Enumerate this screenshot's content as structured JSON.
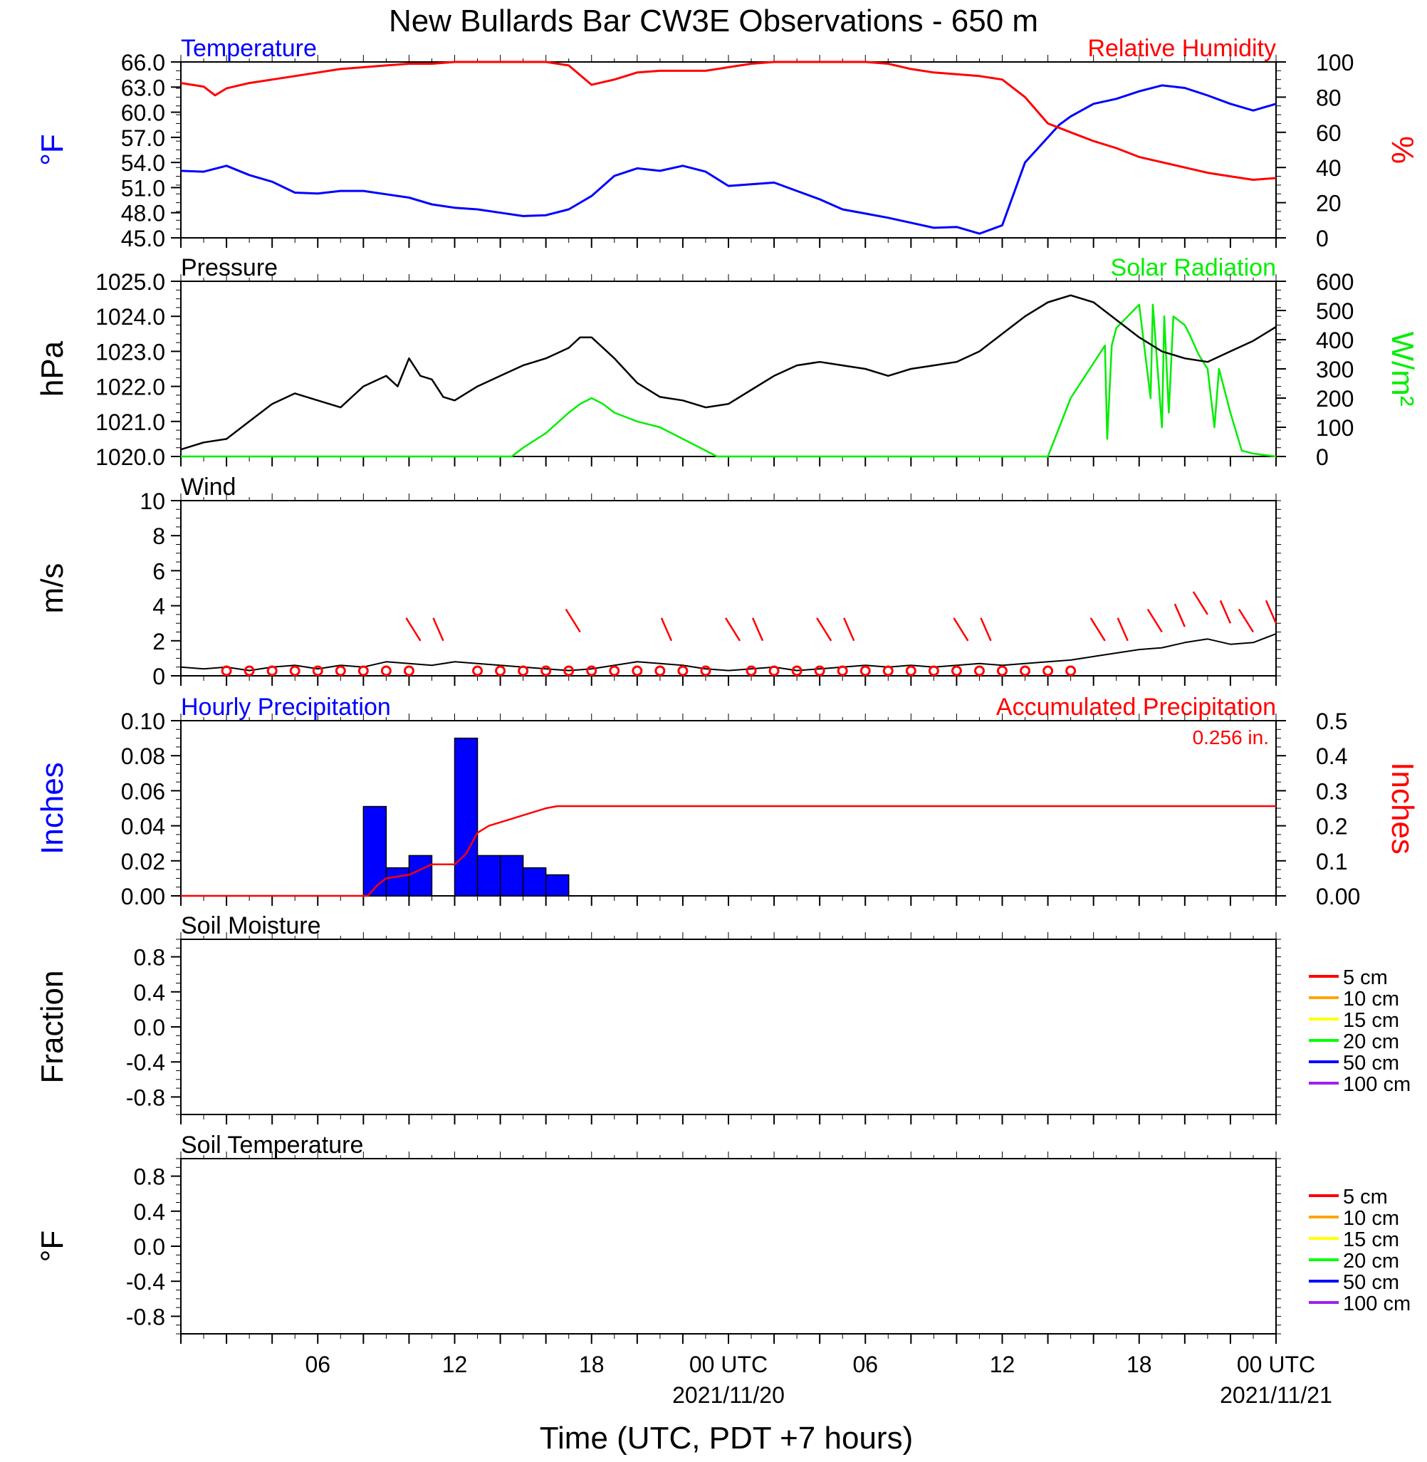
{
  "figure": {
    "title": "New Bullards Bar CW3E Observations - 650 m",
    "xlabel": "Time (UTC, PDT +7 hours)",
    "x_ticks": [
      "06",
      "12",
      "18",
      "00 UTC",
      "06",
      "12",
      "18",
      "00 UTC"
    ],
    "x_dates": [
      "2021/11/20",
      "2021/11/21"
    ]
  },
  "colors": {
    "temperature": "#0000ff",
    "humidity": "#ff0000",
    "pressure": "#000000",
    "solar": "#00ee00",
    "wind": "#000000",
    "barb": "#ff0000",
    "hourly_precip": "#0000ff",
    "accum_precip": "#ff0000"
  },
  "panels": {
    "temp_rh": {
      "left_title": "Temperature",
      "right_title": "Relative Humidity",
      "ylabel_left": "°F",
      "ylabel_right": "%",
      "yticks_left": [
        "45.0",
        "48.0",
        "51.0",
        "54.0",
        "57.0",
        "60.0",
        "63.0",
        "66.0"
      ],
      "yticks_right": [
        "0",
        "20",
        "40",
        "60",
        "80",
        "100"
      ]
    },
    "pressure_solar": {
      "left_title": "Pressure",
      "right_title": "Solar Radiation",
      "ylabel_left": "hPa",
      "ylabel_right": "W/m²",
      "yticks_left": [
        "1020.0",
        "1021.0",
        "1022.0",
        "1023.0",
        "1024.0",
        "1025.0"
      ],
      "yticks_right": [
        "0",
        "100",
        "200",
        "300",
        "400",
        "500",
        "600"
      ]
    },
    "wind": {
      "left_title": "Wind",
      "ylabel_left": "m/s",
      "yticks_left": [
        "0",
        "2",
        "4",
        "6",
        "8",
        "10"
      ]
    },
    "precip": {
      "left_title": "Hourly Precipitation",
      "right_title": "Accumulated Precipitation",
      "total_label": "0.256 in.",
      "ylabel_left": "Inches",
      "ylabel_right": "Inches",
      "yticks_left": [
        "0.00",
        "0.02",
        "0.04",
        "0.06",
        "0.08",
        "0.10"
      ],
      "yticks_right": [
        "0.00",
        "0.1",
        "0.2",
        "0.3",
        "0.4",
        "0.5"
      ]
    },
    "soil_moisture": {
      "left_title": "Soil Moisture",
      "ylabel_left": "Fraction",
      "yticks_left": [
        "-0.8",
        "-0.4",
        "0.0",
        "0.4",
        "0.8"
      ],
      "legend": [
        "5 cm",
        "10 cm",
        "15 cm",
        "20 cm",
        "50 cm",
        "100 cm"
      ]
    },
    "soil_temp": {
      "left_title": "Soil Temperature",
      "ylabel_left": "°F",
      "yticks_left": [
        "-0.8",
        "-0.4",
        "0.0",
        "0.4",
        "0.8"
      ],
      "legend": [
        "5 cm",
        "10 cm",
        "15 cm",
        "20 cm",
        "50 cm",
        "100 cm"
      ]
    }
  },
  "legend_colors": [
    "#ff0000",
    "#ffa500",
    "#ffff00",
    "#00ff00",
    "#0000ff",
    "#a020f0"
  ],
  "chart_data": [
    {
      "type": "line",
      "title": "Temperature",
      "ylabel": "°F",
      "ylim": [
        45,
        66
      ],
      "x_hours": [
        0,
        1,
        2,
        3,
        4,
        5,
        6,
        7,
        8,
        9,
        10,
        11,
        12,
        13,
        14,
        15,
        16,
        17,
        18,
        19,
        20,
        21,
        22,
        23,
        24,
        25,
        26,
        27,
        28,
        29,
        30,
        31,
        32,
        33,
        34,
        35,
        36,
        37,
        38,
        38.5,
        39,
        40,
        41,
        42,
        43,
        44,
        45,
        46,
        47,
        48
      ],
      "values": [
        53,
        52.9,
        53.6,
        52.5,
        51.7,
        50.4,
        50.3,
        50.6,
        50.6,
        50.2,
        49.8,
        49,
        48.6,
        48.4,
        48,
        47.6,
        47.7,
        48.4,
        50,
        52.4,
        53.3,
        53,
        53.6,
        52.9,
        51.2,
        51.4,
        51.6,
        50.6,
        49.6,
        48.4,
        47.9,
        47.4,
        46.8,
        46.2,
        46.3,
        45.5,
        46.5,
        54,
        57,
        58.5,
        59.5,
        61,
        61.6,
        62.5,
        63.2,
        62.9,
        62,
        61,
        60.2,
        61
      ]
    },
    {
      "type": "line",
      "title": "Relative Humidity",
      "ylabel": "%",
      "ylim": [
        0,
        100
      ],
      "x_hours": [
        0,
        1,
        1.5,
        2,
        3,
        4,
        5,
        6,
        7,
        8,
        9,
        10,
        11,
        12,
        13,
        14,
        15,
        16,
        17,
        18,
        19,
        20,
        21,
        22,
        23,
        24,
        25,
        26,
        27,
        28,
        29,
        30,
        31,
        32,
        33,
        34,
        35,
        36,
        37,
        38,
        39,
        40,
        41,
        42,
        43,
        44,
        45,
        46,
        47,
        48
      ],
      "values": [
        88,
        86,
        81,
        85,
        88,
        90,
        92,
        94,
        96,
        97,
        98,
        99,
        99,
        100,
        100,
        100,
        100,
        100,
        98,
        87,
        90,
        94,
        95,
        95,
        95,
        97,
        99,
        100,
        100,
        100,
        100,
        100,
        99,
        96,
        94,
        93,
        92,
        90,
        80,
        65,
        60,
        55,
        51,
        46,
        43,
        40,
        37,
        35,
        33,
        34
      ]
    },
    {
      "type": "line",
      "title": "Pressure",
      "ylabel": "hPa",
      "ylim": [
        1020,
        1025
      ],
      "x_hours": [
        0,
        1,
        2,
        3,
        4,
        5,
        6,
        7,
        8,
        9,
        9.5,
        10,
        10.5,
        11,
        11.5,
        12,
        13,
        14,
        15,
        16,
        17,
        17.5,
        18,
        19,
        20,
        21,
        22,
        23,
        24,
        25,
        26,
        27,
        28,
        29,
        30,
        31,
        32,
        33,
        34,
        35,
        36,
        37,
        38,
        39,
        40,
        41,
        42,
        43,
        44,
        45,
        46,
        47,
        48
      ],
      "values": [
        1020.2,
        1020.4,
        1020.5,
        1021,
        1021.5,
        1021.8,
        1021.6,
        1021.4,
        1022,
        1022.3,
        1022,
        1022.8,
        1022.3,
        1022.2,
        1021.7,
        1021.6,
        1022,
        1022.3,
        1022.6,
        1022.8,
        1023.1,
        1023.4,
        1023.4,
        1022.8,
        1022.1,
        1021.7,
        1021.6,
        1021.4,
        1021.5,
        1021.9,
        1022.3,
        1022.6,
        1022.7,
        1022.6,
        1022.5,
        1022.3,
        1022.5,
        1022.6,
        1022.7,
        1023,
        1023.5,
        1024,
        1024.4,
        1024.6,
        1024.4,
        1023.9,
        1023.4,
        1023,
        1022.8,
        1022.7,
        1023,
        1023.3,
        1023.7
      ]
    },
    {
      "type": "line",
      "title": "Solar Radiation",
      "ylabel": "W/m²",
      "ylim": [
        0,
        600
      ],
      "x_hours": [
        0,
        14.5,
        15,
        16,
        17,
        17.5,
        18,
        18.5,
        19,
        20,
        20.5,
        21,
        22,
        23,
        23.5,
        24,
        38,
        38.5,
        39,
        40,
        40.5,
        40.6,
        40.8,
        41,
        42,
        42.5,
        42.6,
        43,
        43.1,
        43.3,
        43.5,
        44,
        44.2,
        44.6,
        45,
        45.3,
        45.5,
        46,
        46.5,
        47,
        48
      ],
      "values": [
        0,
        0,
        30,
        80,
        150,
        180,
        200,
        180,
        150,
        120,
        110,
        100,
        60,
        20,
        0,
        0,
        0,
        100,
        200,
        320,
        380,
        60,
        380,
        440,
        520,
        200,
        520,
        100,
        480,
        150,
        480,
        450,
        420,
        350,
        300,
        100,
        300,
        150,
        20,
        10,
        0
      ]
    },
    {
      "type": "line",
      "title": "Wind",
      "ylabel": "m/s",
      "ylim": [
        0,
        10
      ],
      "x_hours": [
        0,
        1,
        2,
        3,
        4,
        5,
        6,
        7,
        8,
        9,
        10,
        11,
        12,
        13,
        14,
        15,
        16,
        17,
        18,
        19,
        20,
        21,
        22,
        23,
        24,
        25,
        26,
        27,
        28,
        29,
        30,
        31,
        32,
        33,
        34,
        35,
        36,
        37,
        38,
        39,
        40,
        41,
        42,
        43,
        44,
        45,
        46,
        47,
        48
      ],
      "values": [
        0.5,
        0.4,
        0.5,
        0.3,
        0.5,
        0.6,
        0.4,
        0.6,
        0.5,
        0.8,
        0.7,
        0.6,
        0.8,
        0.7,
        0.6,
        0.5,
        0.4,
        0.3,
        0.4,
        0.6,
        0.8,
        0.7,
        0.6,
        0.4,
        0.3,
        0.4,
        0.5,
        0.3,
        0.4,
        0.5,
        0.6,
        0.5,
        0.6,
        0.5,
        0.6,
        0.7,
        0.6,
        0.7,
        0.8,
        0.9,
        1.1,
        1.3,
        1.5,
        1.6,
        1.9,
        2.1,
        1.8,
        1.9,
        2.4
      ]
    },
    {
      "type": "bar",
      "title": "Hourly Precipitation",
      "ylabel": "Inches",
      "ylim": [
        0,
        0.1
      ],
      "hour_start": [
        8,
        9,
        10,
        12,
        13,
        14,
        15,
        16
      ],
      "values": [
        0.051,
        0.016,
        0.023,
        0.09,
        0.023,
        0.023,
        0.016,
        0.012
      ]
    },
    {
      "type": "line",
      "title": "Accumulated Precipitation",
      "ylabel": "Inches",
      "ylim": [
        0,
        0.5
      ],
      "x_hours": [
        0,
        8.2,
        8.6,
        9,
        9.5,
        10,
        10.5,
        11,
        11.5,
        12,
        12.5,
        13,
        13.5,
        14,
        14.5,
        15,
        15.5,
        16,
        16.5,
        48
      ],
      "values": [
        0,
        0,
        0.03,
        0.05,
        0.055,
        0.06,
        0.075,
        0.09,
        0.09,
        0.09,
        0.12,
        0.18,
        0.2,
        0.21,
        0.22,
        0.23,
        0.24,
        0.25,
        0.256,
        0.256
      ]
    },
    {
      "type": "line",
      "title": "Soil Moisture",
      "ylabel": "Fraction",
      "ylim": [
        -1,
        1
      ],
      "series": []
    },
    {
      "type": "line",
      "title": "Soil Temperature",
      "ylabel": "°F",
      "ylim": [
        -1,
        1
      ],
      "series": []
    }
  ],
  "wind_barbs": {
    "x_hours": [
      10.5,
      11.5,
      17.5,
      21.5,
      24.5,
      25.5,
      28.5,
      29.5,
      34.5,
      35.5,
      40.5,
      41.5,
      43,
      44,
      45,
      46,
      47,
      48
    ],
    "speeds": [
      2,
      2,
      2.5,
      2,
      2,
      2,
      2,
      2,
      2,
      2,
      2,
      2,
      2.5,
      2.8,
      3.5,
      3,
      2.5,
      3
    ]
  },
  "wind_calm": {
    "x_hours": [
      2,
      3,
      4,
      5,
      6,
      7,
      8,
      9,
      10,
      13,
      14,
      15,
      16,
      17,
      18,
      19,
      20,
      21,
      22,
      23,
      25,
      26,
      27,
      28,
      29,
      30,
      31,
      32,
      33,
      34,
      35,
      36,
      37,
      38,
      39
    ]
  }
}
